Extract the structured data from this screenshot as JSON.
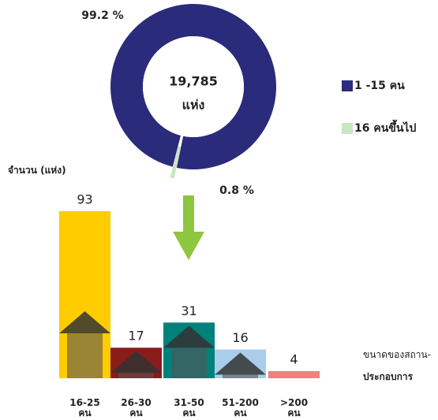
{
  "chart_data": [
    {
      "type": "donut",
      "series": [
        {
          "name": "1 -15 คน",
          "color": "#2b2b7c"
        },
        {
          "name": "16 คนขึ้นไป",
          "color": "#c8e6c0"
        }
      ],
      "values": [
        99.2,
        0.8
      ],
      "value_labels": [
        "99.2 %",
        "0.8 %"
      ],
      "annotations": [
        "19,785",
        "แห่ง"
      ]
    },
    {
      "type": "bar",
      "ylabel": "จำนวน (แห่ง)",
      "xlabel": [
        "ขนาดของสถาน-",
        "ประกอบการ"
      ],
      "categories": [
        "16-25\nคน",
        "26-30\nคน",
        "31-50\nคน",
        "51-200\nคน",
        ">200\nคน"
      ],
      "values": [
        93,
        17,
        31,
        16,
        4
      ],
      "colors": [
        "#ffcc00",
        "#8b1c1c",
        "#00817c",
        "#a9cdeb",
        "#f07f7f"
      ]
    }
  ]
}
